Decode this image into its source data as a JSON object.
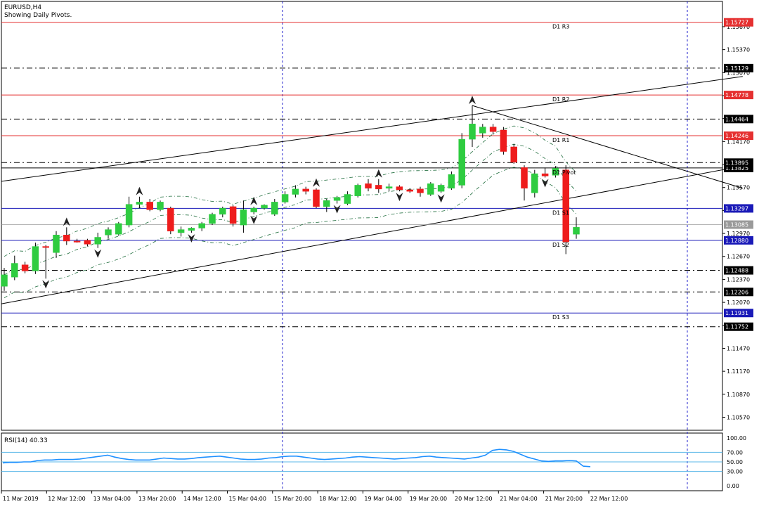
{
  "header": {
    "symbol": "EURUSD,H4",
    "subtitle": "Showing Daily Pivots."
  },
  "colors": {
    "bull": "#2ecc40",
    "bear": "#ee1c1c",
    "resistance": "#e53030",
    "support": "#1a1ab8",
    "rsi": "#1e90ff",
    "grid": "#2222cc",
    "bands": "#1c6b3a"
  },
  "chart_data": [
    {
      "type": "candlestick",
      "title": "EURUSD,H4",
      "ylim": [
        1.104,
        1.16
      ],
      "y_ticks": [
        "1.15670",
        "1.15370",
        "1.15070",
        "1.14770",
        "1.14470",
        "1.14170",
        "1.13870",
        "1.13570",
        "1.13270",
        "1.12970",
        "1.12670",
        "1.12370",
        "1.12070",
        "1.11770",
        "1.11470",
        "1.11170",
        "1.10870",
        "1.10570"
      ],
      "x_labels": [
        "11 Mar 2019",
        "12 Mar 12:00",
        "13 Mar 04:00",
        "13 Mar 20:00",
        "14 Mar 12:00",
        "15 Mar 04:00",
        "15 Mar 20:00",
        "18 Mar 12:00",
        "19 Mar 04:00",
        "19 Mar 20:00",
        "20 Mar 12:00",
        "21 Mar 04:00",
        "21 Mar 20:00",
        "22 Mar 12:00"
      ],
      "candles": [
        {
          "o": 1.1228,
          "h": 1.1252,
          "l": 1.1222,
          "c": 1.1243
        },
        {
          "o": 1.124,
          "h": 1.1268,
          "l": 1.1236,
          "c": 1.1258
        },
        {
          "o": 1.1256,
          "h": 1.126,
          "l": 1.1245,
          "c": 1.1248
        },
        {
          "o": 1.1248,
          "h": 1.1285,
          "l": 1.1244,
          "c": 1.128
        },
        {
          "o": 1.128,
          "h": 1.1282,
          "l": 1.1238,
          "c": 1.1279
        },
        {
          "o": 1.1272,
          "h": 1.13,
          "l": 1.1265,
          "c": 1.1295
        },
        {
          "o": 1.1295,
          "h": 1.1305,
          "l": 1.1282,
          "c": 1.1287
        },
        {
          "o": 1.1287,
          "h": 1.129,
          "l": 1.1285,
          "c": 1.1286
        },
        {
          "o": 1.1288,
          "h": 1.129,
          "l": 1.128,
          "c": 1.1283
        },
        {
          "o": 1.1283,
          "h": 1.1298,
          "l": 1.1278,
          "c": 1.1292
        },
        {
          "o": 1.1295,
          "h": 1.1305,
          "l": 1.129,
          "c": 1.1302
        },
        {
          "o": 1.1296,
          "h": 1.1312,
          "l": 1.1294,
          "c": 1.131
        },
        {
          "o": 1.1308,
          "h": 1.1345,
          "l": 1.1305,
          "c": 1.1335
        },
        {
          "o": 1.1335,
          "h": 1.1345,
          "l": 1.133,
          "c": 1.1338
        },
        {
          "o": 1.1338,
          "h": 1.1342,
          "l": 1.1326,
          "c": 1.1328
        },
        {
          "o": 1.1328,
          "h": 1.134,
          "l": 1.1326,
          "c": 1.1338
        },
        {
          "o": 1.133,
          "h": 1.1332,
          "l": 1.1296,
          "c": 1.13
        },
        {
          "o": 1.1298,
          "h": 1.1306,
          "l": 1.1293,
          "c": 1.1302
        },
        {
          "o": 1.1301,
          "h": 1.1305,
          "l": 1.1298,
          "c": 1.1304
        },
        {
          "o": 1.1304,
          "h": 1.1312,
          "l": 1.13,
          "c": 1.131
        },
        {
          "o": 1.131,
          "h": 1.1324,
          "l": 1.1308,
          "c": 1.1322
        },
        {
          "o": 1.1322,
          "h": 1.1332,
          "l": 1.1318,
          "c": 1.133
        },
        {
          "o": 1.1332,
          "h": 1.1334,
          "l": 1.1306,
          "c": 1.131
        },
        {
          "o": 1.1308,
          "h": 1.134,
          "l": 1.1298,
          "c": 1.1328
        },
        {
          "o": 1.1325,
          "h": 1.1332,
          "l": 1.1322,
          "c": 1.133
        },
        {
          "o": 1.133,
          "h": 1.1335,
          "l": 1.1328,
          "c": 1.1334
        },
        {
          "o": 1.1322,
          "h": 1.1342,
          "l": 1.132,
          "c": 1.1338
        },
        {
          "o": 1.1338,
          "h": 1.1352,
          "l": 1.1336,
          "c": 1.1348
        },
        {
          "o": 1.1348,
          "h": 1.136,
          "l": 1.1344,
          "c": 1.1355
        },
        {
          "o": 1.1355,
          "h": 1.1358,
          "l": 1.1348,
          "c": 1.1352
        },
        {
          "o": 1.1354,
          "h": 1.1356,
          "l": 1.133,
          "c": 1.1332
        },
        {
          "o": 1.1332,
          "h": 1.1342,
          "l": 1.1325,
          "c": 1.134
        },
        {
          "o": 1.134,
          "h": 1.1346,
          "l": 1.1336,
          "c": 1.1344
        },
        {
          "o": 1.1336,
          "h": 1.1352,
          "l": 1.1334,
          "c": 1.1348
        },
        {
          "o": 1.1346,
          "h": 1.1362,
          "l": 1.1344,
          "c": 1.136
        },
        {
          "o": 1.1362,
          "h": 1.1368,
          "l": 1.1352,
          "c": 1.1356
        },
        {
          "o": 1.136,
          "h": 1.1368,
          "l": 1.135,
          "c": 1.1355
        },
        {
          "o": 1.1356,
          "h": 1.1362,
          "l": 1.1352,
          "c": 1.1358
        },
        {
          "o": 1.1358,
          "h": 1.136,
          "l": 1.1352,
          "c": 1.1354
        },
        {
          "o": 1.1354,
          "h": 1.1356,
          "l": 1.135,
          "c": 1.1352
        },
        {
          "o": 1.1355,
          "h": 1.1358,
          "l": 1.1345,
          "c": 1.135
        },
        {
          "o": 1.1348,
          "h": 1.1364,
          "l": 1.1346,
          "c": 1.1362
        },
        {
          "o": 1.1352,
          "h": 1.1362,
          "l": 1.135,
          "c": 1.136
        },
        {
          "o": 1.1356,
          "h": 1.1378,
          "l": 1.1354,
          "c": 1.1374
        },
        {
          "o": 1.136,
          "h": 1.1428,
          "l": 1.1356,
          "c": 1.142
        },
        {
          "o": 1.142,
          "h": 1.1464,
          "l": 1.141,
          "c": 1.144
        },
        {
          "o": 1.1428,
          "h": 1.144,
          "l": 1.1422,
          "c": 1.1436
        },
        {
          "o": 1.1436,
          "h": 1.144,
          "l": 1.1426,
          "c": 1.143
        },
        {
          "o": 1.1432,
          "h": 1.1436,
          "l": 1.14,
          "c": 1.1404
        },
        {
          "o": 1.141,
          "h": 1.1414,
          "l": 1.1388,
          "c": 1.139
        },
        {
          "o": 1.1383,
          "h": 1.1386,
          "l": 1.134,
          "c": 1.1356
        },
        {
          "o": 1.135,
          "h": 1.138,
          "l": 1.1344,
          "c": 1.1375
        },
        {
          "o": 1.1375,
          "h": 1.1383,
          "l": 1.137,
          "c": 1.1372
        },
        {
          "o": 1.1373,
          "h": 1.1385,
          "l": 1.137,
          "c": 1.1382
        },
        {
          "o": 1.138,
          "h": 1.1386,
          "l": 1.127,
          "c": 1.1286
        },
        {
          "o": 1.1296,
          "h": 1.1318,
          "l": 1.129,
          "c": 1.1305
        }
      ],
      "pivot_lines": [
        {
          "label": "D1 R3",
          "price_label": "1.15727",
          "value": 1.15727,
          "kind": "resistance"
        },
        {
          "label": "D1 R2",
          "price_label": "1.14778",
          "value": 1.14778,
          "kind": "resistance"
        },
        {
          "label": "D1 R1",
          "price_label": "1.14246",
          "value": 1.14246,
          "kind": "resistance"
        },
        {
          "label": "D1 Pivot",
          "price_label": "1.13825",
          "value": 1.13825,
          "kind": "pivot"
        },
        {
          "label": "D1 S1",
          "price_label": "1.13297",
          "value": 1.13297,
          "kind": "support"
        },
        {
          "label": "D1 S2",
          "price_label": "1.12880",
          "value": 1.1288,
          "kind": "support"
        },
        {
          "label": "D1 S3",
          "price_label": "1.11931",
          "value": 1.11931,
          "kind": "support"
        }
      ],
      "dashed_levels": [
        {
          "price_label": "1.15129",
          "value": 1.15129
        },
        {
          "price_label": "1.14464",
          "value": 1.14464
        },
        {
          "price_label": "1.13895",
          "value": 1.13895
        },
        {
          "price_label": "1.12488",
          "value": 1.12488
        },
        {
          "price_label": "1.12206",
          "value": 1.12206
        },
        {
          "price_label": "1.11752",
          "value": 1.11752
        }
      ],
      "current_price": {
        "price_label": "1.13085",
        "value": 1.13085
      }
    },
    {
      "type": "line",
      "title": "RSI(14) 40.33",
      "ylim": [
        -10,
        110
      ],
      "y_ticks": [
        "100.00",
        "70.00",
        "50.00",
        "30.00",
        "0.00"
      ],
      "levels": [
        70,
        50,
        30
      ],
      "series": [
        {
          "values": [
            48,
            49,
            49,
            50,
            50,
            53,
            54,
            54,
            55,
            55,
            55,
            56,
            58,
            60,
            62,
            64,
            60,
            57,
            55,
            54,
            54,
            54,
            56,
            58,
            57,
            56,
            56,
            57,
            59,
            60,
            61,
            62,
            60,
            58,
            56,
            55,
            55,
            56,
            58,
            59,
            61,
            62,
            62,
            60,
            58,
            56,
            55,
            56,
            57,
            58,
            60,
            61,
            60,
            59,
            58,
            57,
            56,
            57,
            58,
            59,
            61,
            62,
            60,
            59,
            58,
            57,
            56,
            58,
            60,
            64,
            74,
            76,
            75,
            72,
            66,
            60,
            56,
            52,
            51,
            52,
            52,
            53,
            52,
            41,
            40
          ]
        }
      ]
    }
  ]
}
